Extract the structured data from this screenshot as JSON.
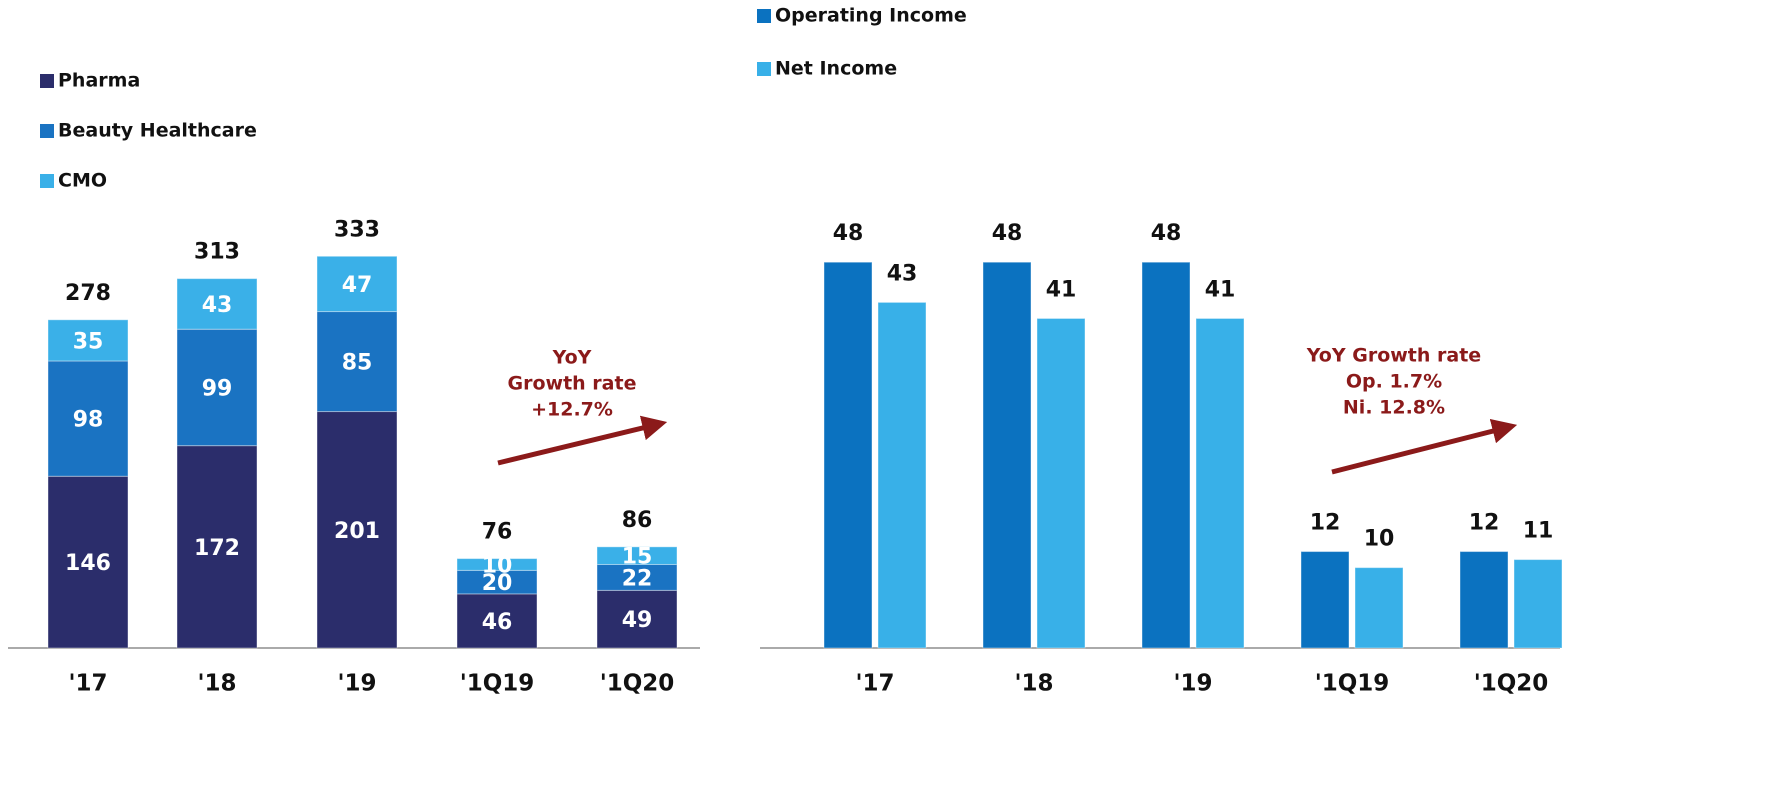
{
  "chart_data": [
    {
      "type": "stacked_bar",
      "categories": [
        "'17",
        "'18",
        "'19",
        "'1Q19",
        "'1Q20"
      ],
      "series": [
        {
          "name": "Pharma",
          "color": "#2b2d6b",
          "values": [
            146,
            172,
            201,
            46,
            49
          ]
        },
        {
          "name": "Beauty Healthcare",
          "color": "#1a73c2",
          "values": [
            98,
            99,
            85,
            20,
            22
          ]
        },
        {
          "name": "CMO",
          "color": "#3ab0e8",
          "values": [
            35,
            43,
            47,
            10,
            15
          ]
        }
      ],
      "totals": [
        278,
        313,
        333,
        76,
        86
      ],
      "ylim": [
        0,
        550
      ],
      "annotation": [
        "YoY",
        "Growth rate",
        "+12.7%"
      ]
    },
    {
      "type": "bar",
      "categories": [
        "'17",
        "'18",
        "'19",
        "'1Q19",
        "'1Q20"
      ],
      "series": [
        {
          "name": "Operating Income",
          "color": "#0b72c0",
          "values": [
            48,
            48,
            48,
            12,
            12
          ]
        },
        {
          "name": "Net Income",
          "color": "#38b0e8",
          "values": [
            43,
            41,
            41,
            10,
            11
          ]
        }
      ],
      "ylim": [
        0,
        80
      ],
      "annotation": [
        "YoY Growth rate",
        "Op. 1.7%",
        "Ni. 12.8%"
      ]
    }
  ]
}
